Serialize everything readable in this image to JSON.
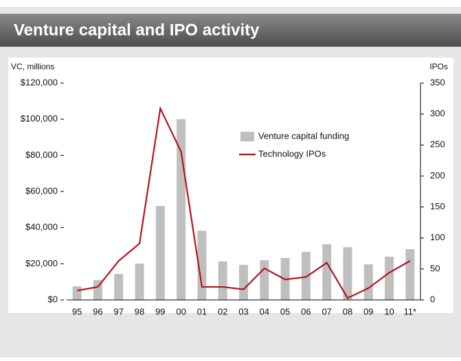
{
  "chart_data": {
    "type": "bar_line",
    "title": "Venture capital and IPO activity",
    "y_label": "VC, millions",
    "y2_label": "IPOs",
    "categories": [
      "95",
      "96",
      "97",
      "98",
      "99",
      "00",
      "01",
      "02",
      "03",
      "04",
      "05",
      "06",
      "07",
      "08",
      "09",
      "10",
      "11*"
    ],
    "series": [
      {
        "name": "Venture capital funding",
        "color": "#bfbfbf",
        "type": "bar",
        "values": [
          7500,
          11000,
          14400,
          20100,
          52000,
          100000,
          38300,
          21300,
          19400,
          22000,
          23200,
          26600,
          30800,
          29200,
          19700,
          23900,
          28100
        ]
      },
      {
        "name": "Technology IPOs",
        "color": "#b5121b",
        "type": "line",
        "axis": "y2",
        "values": [
          15,
          21,
          63,
          91,
          309,
          239,
          21,
          21,
          17,
          51,
          33,
          37,
          60,
          3,
          19,
          44,
          63
        ]
      }
    ],
    "ylim": [
      0,
      120000
    ],
    "yticks": [
      {
        "value": 0,
        "label": "$0"
      },
      {
        "value": 20000,
        "label": "$20,000"
      },
      {
        "value": 40000,
        "label": "$40,000"
      },
      {
        "value": 60000,
        "label": "$60,000"
      },
      {
        "value": 80000,
        "label": "$80,000"
      },
      {
        "value": 100000,
        "label": "$100,000"
      },
      {
        "value": 120000,
        "label": "$120,000"
      }
    ],
    "y2lim": [
      0,
      350
    ],
    "y2ticks": [
      0,
      50,
      100,
      150,
      200,
      250,
      300,
      350
    ]
  }
}
